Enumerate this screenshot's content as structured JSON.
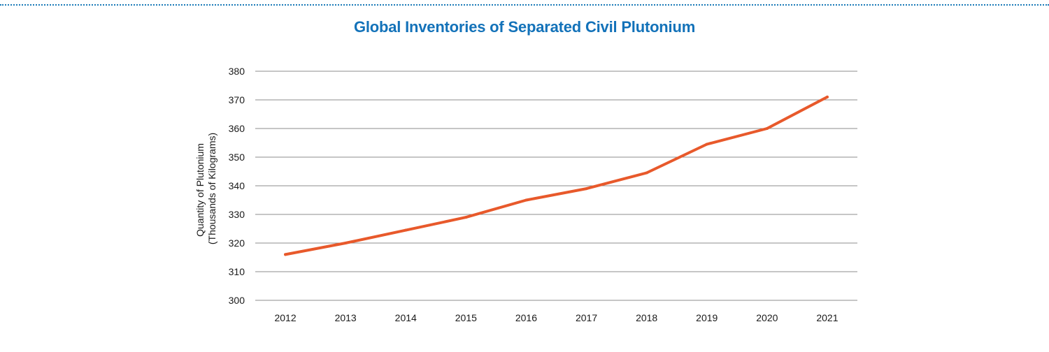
{
  "chart_data": {
    "type": "line",
    "title": "Global Inventories of Separated Civil Plutonium",
    "ylabel_lines": [
      "Quantity of Plutonium",
      "(Thousands of Kilograms)"
    ],
    "xlabel": "",
    "categories": [
      "2012",
      "2013",
      "2014",
      "2015",
      "2016",
      "2017",
      "2018",
      "2019",
      "2020",
      "2021"
    ],
    "series": [
      {
        "values": [
          316,
          320,
          324.5,
          329,
          335,
          339,
          344.5,
          354.5,
          360,
          371
        ],
        "color": "#e8592b"
      }
    ],
    "ylim": [
      300,
      380
    ],
    "yticks": [
      300,
      310,
      320,
      330,
      340,
      350,
      360,
      370,
      380
    ],
    "grid": true,
    "legend": "none",
    "colors": {
      "title": "#1372b9",
      "grid": "#8c8c8c",
      "rule": "#1a7ab8"
    }
  }
}
